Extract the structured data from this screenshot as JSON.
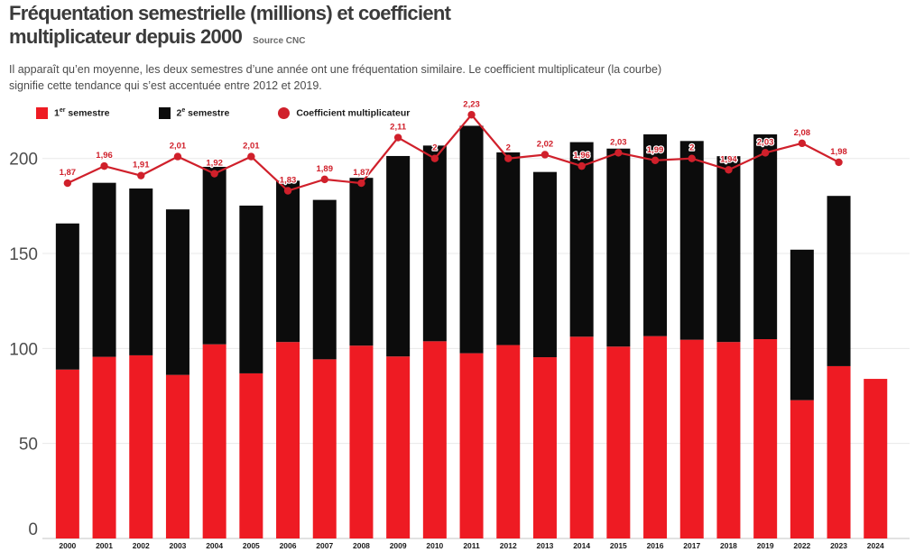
{
  "header": {
    "title_line1": "Fréquentation semestrielle (millions) et coefficient",
    "title_line2": "multiplicateur depuis 2000",
    "source": "Source CNC",
    "subtitle_line1": "Il apparaît qu’en moyenne, les deux semestres d’une année ont une fréquentation similaire. Le coefficient multiplicateur (la courbe)",
    "subtitle_line2": "signifie cette tendance qui s’est accentuée entre 2012 et 2019."
  },
  "legend": {
    "items": [
      {
        "marker": "square",
        "color": "#ee1b23",
        "prefix": "1",
        "sup": "er",
        "rest": " semestre"
      },
      {
        "marker": "square",
        "color": "#0c0c0c",
        "prefix": "2",
        "sup": "e",
        "rest": " semestre"
      },
      {
        "marker": "circle",
        "color": "#d0202b",
        "prefix": "Coefficient multiplicateur",
        "sup": "",
        "rest": ""
      }
    ]
  },
  "chart_data": {
    "type": "bar",
    "stacked": true,
    "title": "Fréquentation semestrielle (millions) et coefficient multiplicateur depuis 2000",
    "xlabel": "",
    "ylabel": "",
    "ylim": [
      0,
      220
    ],
    "yticks": [
      0,
      50,
      100,
      150,
      200
    ],
    "grid": true,
    "legend_position": "top-left",
    "categories": [
      "2000",
      "2001",
      "2002",
      "2003",
      "2004",
      "2005",
      "2006",
      "2007",
      "2008",
      "2009",
      "2010",
      "2011",
      "2012",
      "2013",
      "2014",
      "2015",
      "2016",
      "2017",
      "2018",
      "2019",
      "2022",
      "2023",
      "2024"
    ],
    "series": [
      {
        "name": "1er semestre",
        "color": "#ee1b23",
        "values": [
          88.9,
          95.6,
          96.4,
          86.1,
          102.2,
          86.9,
          103.4,
          94.3,
          101.5,
          95.8,
          103.8,
          97.5,
          101.8,
          95.4,
          106.2,
          101.0,
          106.5,
          104.6,
          103.4,
          104.9,
          72.8,
          90.7,
          84.0
        ]
      },
      {
        "name": "2e semestre",
        "color": "#0c0c0c",
        "values": [
          76.9,
          91.6,
          87.8,
          87.1,
          93.4,
          88.3,
          84.9,
          83.9,
          88.3,
          105.5,
          103.0,
          119.7,
          101.4,
          97.5,
          102.4,
          104.2,
          106.2,
          104.6,
          97.8,
          107.8,
          79.2,
          89.6,
          0
        ]
      }
    ],
    "line": {
      "name": "Coefficient multiplicateur",
      "color": "#d0202b",
      "scale_factor": 100,
      "values": [
        1.87,
        1.96,
        1.91,
        2.01,
        1.92,
        2.01,
        1.83,
        1.89,
        1.87,
        2.11,
        2,
        2.23,
        2,
        2.02,
        1.96,
        2.03,
        1.99,
        2,
        1.94,
        2.03,
        2.08,
        1.98,
        null
      ],
      "labels": [
        "1,87",
        "1,96",
        "1,91",
        "2,01",
        "1,92",
        "2,01",
        "1,83",
        "1,89",
        "1,87",
        "2,11",
        "2",
        "2,23",
        "2",
        "2,02",
        "1,96",
        "2,03",
        "1,99",
        "2",
        "1,94",
        "2,03",
        "2,08",
        "1,98",
        null
      ]
    }
  }
}
